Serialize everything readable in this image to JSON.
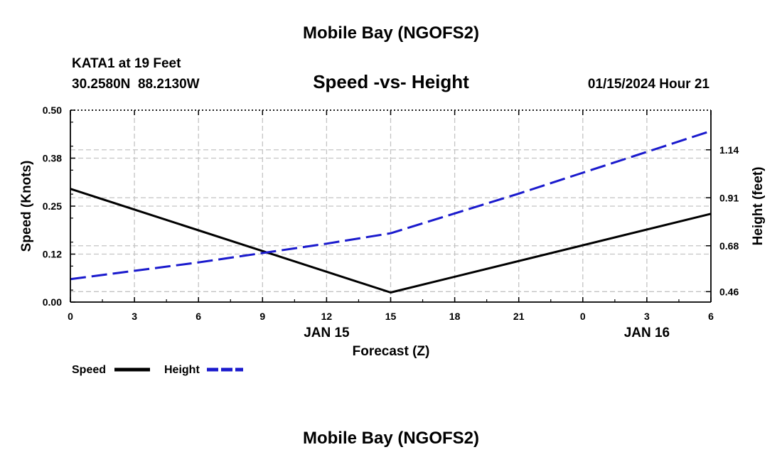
{
  "chart_data": {
    "type": "line",
    "title": "Mobile Bay (NGOFS2)",
    "subtitle": "Speed -vs- Height",
    "station": "KATA1 at 19 Feet",
    "coordinates": "30.2580N  88.2130W",
    "timestamp": "01/15/2024 Hour 21",
    "xlabel": "Forecast (Z)",
    "ylabel_left": "Speed (Knots)",
    "ylabel_right": "Height (feet)",
    "x_ticks": [
      "0",
      "3",
      "6",
      "9",
      "12",
      "15",
      "18",
      "21",
      "0",
      "3",
      "6"
    ],
    "x_date_labels": [
      {
        "label": "JAN 15",
        "at_hour": 12
      },
      {
        "label": "JAN 16",
        "at_hour": 27
      }
    ],
    "xlim": [
      0,
      30
    ],
    "ylim_left": [
      0,
      0.5
    ],
    "y_ticks_left": [
      "0.00",
      "0.12",
      "0.25",
      "0.38",
      "0.50"
    ],
    "y_ticks_right": [
      {
        "label": "0.46",
        "value": 0.46
      },
      {
        "label": "0.68",
        "value": 0.68
      },
      {
        "label": "0.91",
        "value": 0.91
      },
      {
        "label": "1.14",
        "value": 1.14
      }
    ],
    "ylim_right": [
      0.41,
      1.33
    ],
    "grid": true,
    "series": [
      {
        "name": "Speed",
        "axis": "left",
        "color": "#000000",
        "dash": "solid",
        "x": [
          0,
          15,
          30
        ],
        "values": [
          0.295,
          0.025,
          0.23
        ]
      },
      {
        "name": "Height",
        "axis": "right",
        "color": "#1a1acd",
        "dash": "dashed",
        "x": [
          0,
          3,
          6,
          9,
          12,
          15,
          18,
          21,
          24,
          27,
          30
        ],
        "values": [
          0.52,
          0.56,
          0.6,
          0.645,
          0.69,
          0.74,
          0.835,
          0.93,
          1.03,
          1.13,
          1.23
        ]
      }
    ],
    "legend": [
      "Speed",
      "Height"
    ],
    "footer_title": "Mobile Bay (NGOFS2)"
  }
}
